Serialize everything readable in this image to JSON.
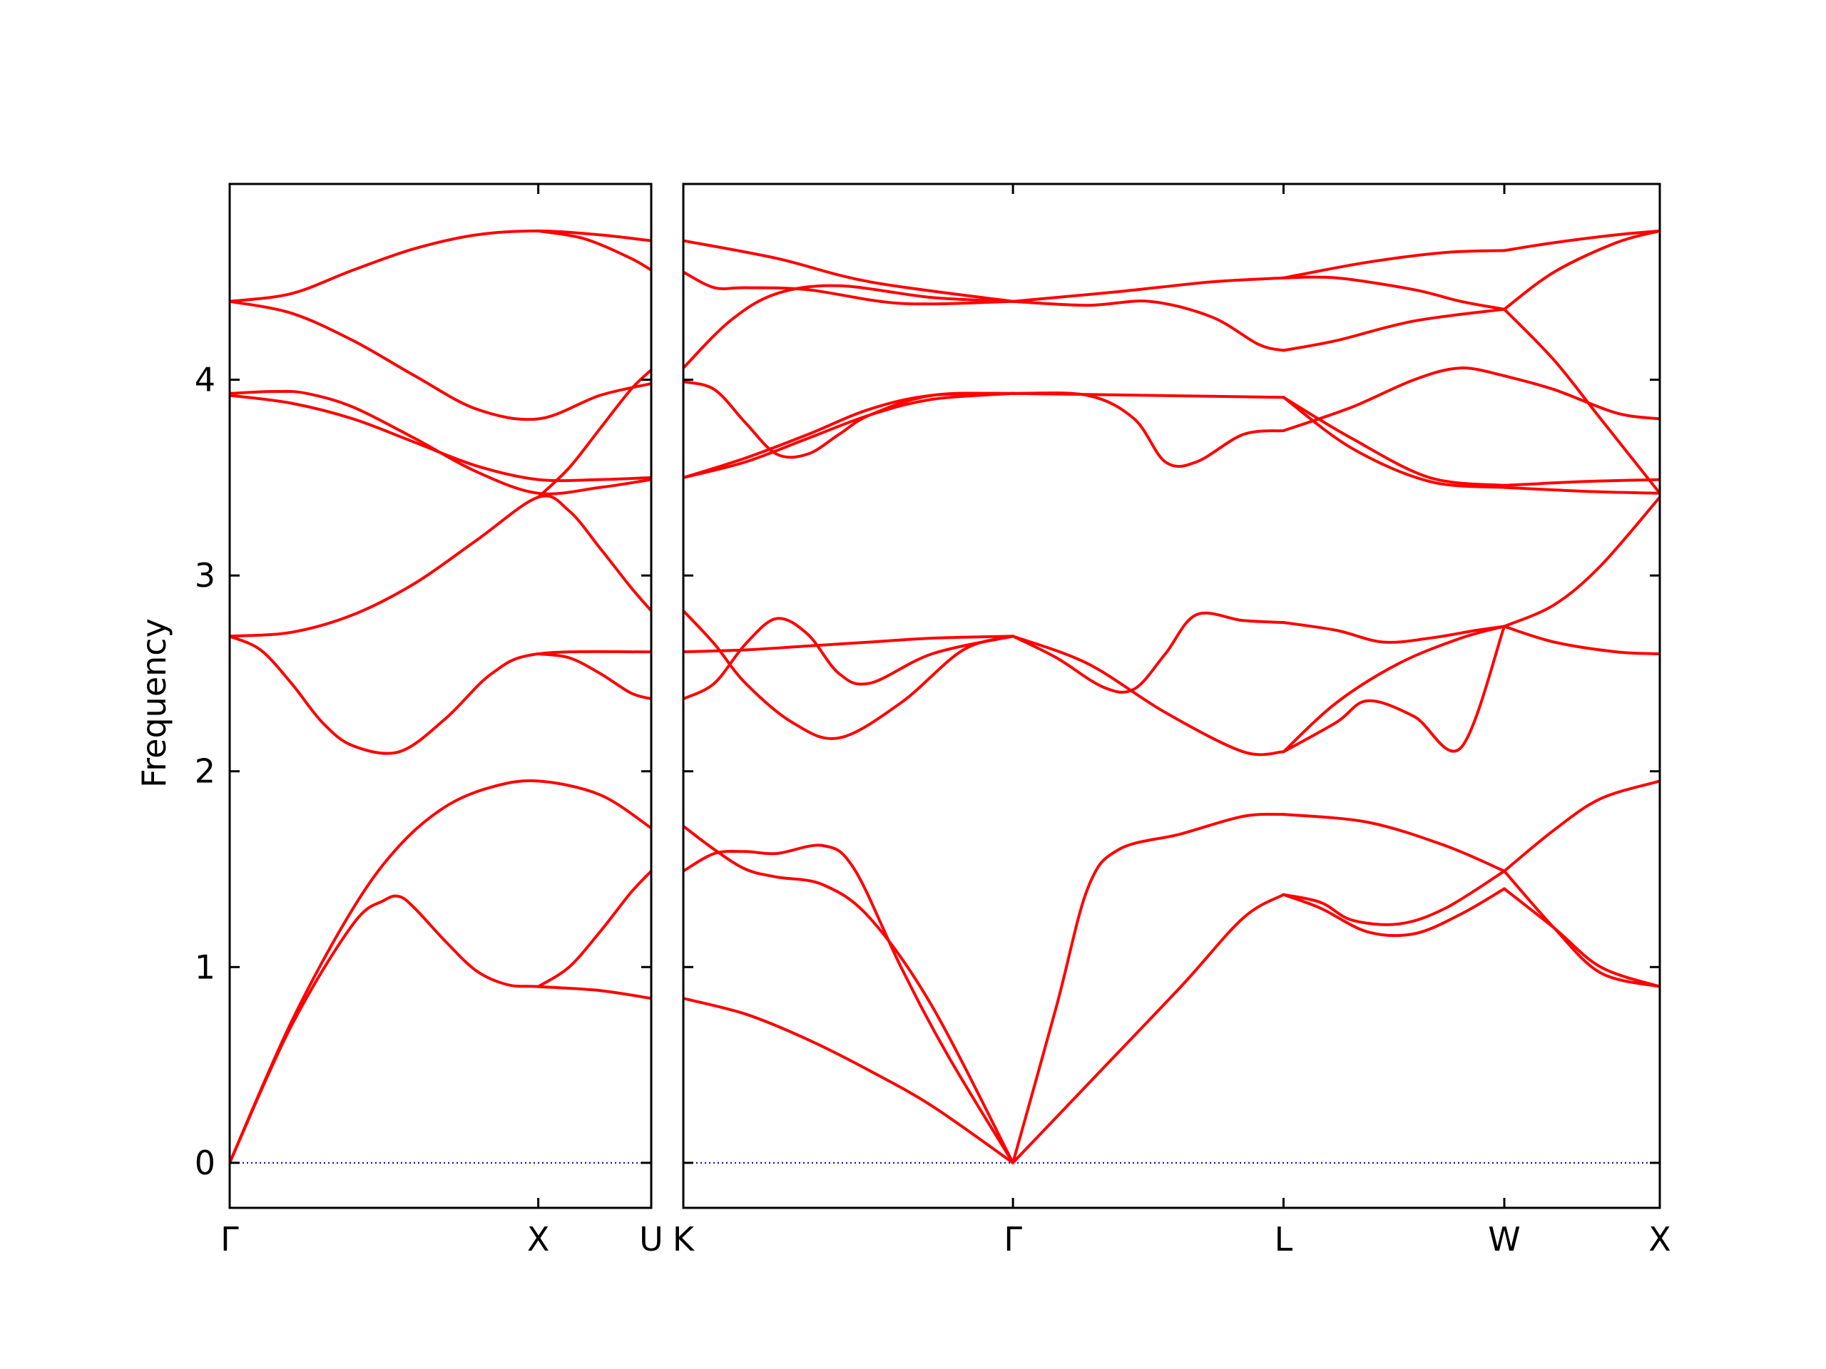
{
  "chart_data": {
    "type": "line",
    "title": "",
    "ylabel": "Frequency",
    "xlabel": "",
    "ylim": [
      -0.23,
      5.0
    ],
    "yticks": [
      0,
      1,
      2,
      3,
      4
    ],
    "yticks_labels": [
      "0",
      "1",
      "2",
      "3",
      "4"
    ],
    "grid": false,
    "legend": "none",
    "colors": {
      "bands": "#ff0000",
      "zero_line": "#0000cc",
      "axes": "#000000"
    },
    "panels": [
      {
        "name": "Γ-X-U",
        "xlim": [
          0,
          1.366
        ],
        "xticks": [
          0,
          1.0,
          1.366
        ],
        "xtick_labels": [
          "Γ",
          "X",
          "U"
        ],
        "bands": [
          {
            "x": [
              0,
              0.2,
              0.4,
              0.55,
              0.7,
              0.85,
              1.0,
              1.2,
              1.366
            ],
            "y": [
              0,
              0.72,
              1.3,
              1.62,
              1.82,
              1.92,
              1.95,
              1.88,
              1.71
            ]
          },
          {
            "x": [
              0,
              0.2,
              0.4,
              0.5,
              0.55,
              0.6,
              0.7,
              0.8,
              0.9,
              1.0,
              1.2,
              1.366
            ],
            "y": [
              0,
              0.7,
              1.22,
              1.34,
              1.36,
              1.3,
              1.13,
              0.98,
              0.91,
              0.9,
              0.88,
              0.84
            ]
          },
          {
            "x": [
              0,
              0.1,
              0.2,
              0.3,
              0.4,
              0.55,
              0.7,
              0.85,
              1.0,
              1.366
            ],
            "y": [
              2.69,
              2.62,
              2.45,
              2.25,
              2.13,
              2.1,
              2.27,
              2.5,
              2.6,
              2.61
            ]
          },
          {
            "x": [
              0,
              0.2,
              0.4,
              0.6,
              0.8,
              1.0,
              1.1,
              1.2,
              1.3,
              1.366
            ],
            "y": [
              2.69,
              2.71,
              2.8,
              2.96,
              3.18,
              3.4,
              3.33,
              3.14,
              2.94,
              2.82
            ]
          },
          {
            "x": [
              1.0,
              1.1,
              1.2,
              1.3,
              1.366
            ],
            "y": [
              2.6,
              2.58,
              2.5,
              2.4,
              2.37
            ]
          },
          {
            "x": [
              1.0,
              1.1,
              1.2,
              1.3,
              1.366
            ],
            "y": [
              0.9,
              1.0,
              1.18,
              1.38,
              1.49
            ]
          },
          {
            "x": [
              0,
              0.15,
              0.25,
              0.4,
              0.6,
              0.8,
              1.0,
              1.2,
              1.366
            ],
            "y": [
              3.93,
              3.94,
              3.93,
              3.86,
              3.7,
              3.53,
              3.42,
              3.45,
              3.49
            ]
          },
          {
            "x": [
              0,
              0.2,
              0.4,
              0.6,
              0.8,
              1.0,
              1.2,
              1.366
            ],
            "y": [
              3.92,
              3.88,
              3.8,
              3.68,
              3.56,
              3.49,
              3.49,
              3.5
            ]
          },
          {
            "x": [
              1.0,
              1.1,
              1.2,
              1.3,
              1.366
            ],
            "y": [
              3.4,
              3.55,
              3.75,
              3.95,
              4.05
            ]
          },
          {
            "x": [
              0,
              0.2,
              0.4,
              0.6,
              0.8,
              1.0,
              1.2,
              1.366
            ],
            "y": [
              4.4,
              4.34,
              4.2,
              4.02,
              3.85,
              3.8,
              3.92,
              3.98
            ]
          },
          {
            "x": [
              0,
              0.2,
              0.4,
              0.6,
              0.8,
              1.0,
              1.2,
              1.366
            ],
            "y": [
              4.4,
              4.44,
              4.56,
              4.67,
              4.74,
              4.76,
              4.74,
              4.71
            ]
          },
          {
            "x": [
              1.0,
              1.15,
              1.3,
              1.366
            ],
            "y": [
              4.76,
              4.72,
              4.62,
              4.56
            ]
          }
        ]
      },
      {
        "name": "K-Γ-L-W-X",
        "xlim": [
          0,
          4.68
        ],
        "xticks": [
          0,
          1.06,
          1.93,
          2.64,
          3.14
        ],
        "xtick_labels": [
          "K",
          "Γ",
          "L",
          "W",
          "X"
        ],
        "xdomain": [
          0,
          3.14
        ],
        "bands": [
          {
            "x": [
              0,
              0.2,
              0.4,
              0.6,
              0.8,
              1.06
            ],
            "y": [
              0.84,
              0.76,
              0.63,
              0.47,
              0.29,
              0
            ]
          },
          {
            "x": [
              0,
              0.1,
              0.2,
              0.3,
              0.45,
              0.6,
              0.8,
              1.06
            ],
            "y": [
              1.72,
              1.6,
              1.5,
              1.46,
              1.42,
              1.25,
              0.8,
              0
            ]
          },
          {
            "x": [
              0,
              0.1,
              0.2,
              0.3,
              0.45,
              0.55,
              0.7,
              0.85,
              1.06
            ],
            "y": [
              1.49,
              1.58,
              1.59,
              1.58,
              1.62,
              1.5,
              1.0,
              0.55,
              0
            ]
          },
          {
            "x": [
              1.06,
              1.2,
              1.3,
              1.4,
              1.6,
              1.8,
              1.93
            ],
            "y": [
              0,
              0.8,
              1.4,
              1.6,
              1.68,
              1.77,
              1.78
            ]
          },
          {
            "x": [
              1.06,
              1.3,
              1.6,
              1.8,
              1.93
            ],
            "y": [
              0,
              0.4,
              0.9,
              1.25,
              1.37
            ]
          },
          {
            "x": [
              1.93,
              2.05,
              2.15,
              2.3,
              2.45,
              2.64
            ],
            "y": [
              1.37,
              1.33,
              1.24,
              1.22,
              1.3,
              1.49
            ]
          },
          {
            "x": [
              1.93,
              2.05,
              2.2,
              2.35,
              2.5,
              2.64
            ],
            "y": [
              1.37,
              1.3,
              1.18,
              1.17,
              1.27,
              1.4
            ]
          },
          {
            "x": [
              1.93,
              2.2,
              2.45,
              2.64
            ],
            "y": [
              1.78,
              1.74,
              1.62,
              1.49
            ]
          },
          {
            "x": [
              2.64,
              2.8,
              2.95,
              3.14
            ],
            "y": [
              1.49,
              1.7,
              1.86,
              1.95
            ]
          },
          {
            "x": [
              2.64,
              2.8,
              2.95,
              3.14
            ],
            "y": [
              1.4,
              1.2,
              1.0,
              0.9
            ]
          },
          {
            "x": [
              2.64,
              2.8,
              2.95,
              3.14
            ],
            "y": [
              1.49,
              1.2,
              0.97,
              0.9
            ]
          },
          {
            "x": [
              0,
              0.2,
              0.4,
              0.6,
              0.8,
              1.06
            ],
            "y": [
              2.61,
              2.62,
              2.64,
              2.66,
              2.68,
              2.69
            ]
          },
          {
            "x": [
              0,
              0.1,
              0.2,
              0.3,
              0.4,
              0.5,
              0.6,
              0.8,
              1.06
            ],
            "y": [
              2.37,
              2.45,
              2.65,
              2.78,
              2.7,
              2.5,
              2.45,
              2.6,
              2.69
            ]
          },
          {
            "x": [
              0,
              0.1,
              0.2,
              0.35,
              0.5,
              0.7,
              0.9,
              1.06
            ],
            "y": [
              2.82,
              2.65,
              2.45,
              2.25,
              2.17,
              2.35,
              2.62,
              2.69
            ]
          },
          {
            "x": [
              1.06,
              1.2,
              1.35,
              1.45,
              1.55,
              1.65,
              1.8,
              1.93
            ],
            "y": [
              2.69,
              2.58,
              2.43,
              2.42,
              2.6,
              2.8,
              2.77,
              2.76
            ]
          },
          {
            "x": [
              1.06,
              1.3,
              1.55,
              1.8,
              1.93
            ],
            "y": [
              2.69,
              2.55,
              2.3,
              2.1,
              2.1
            ]
          },
          {
            "x": [
              1.93,
              2.1,
              2.25,
              2.4,
              2.55,
              2.64
            ],
            "y": [
              2.76,
              2.72,
              2.66,
              2.68,
              2.72,
              2.74
            ]
          },
          {
            "x": [
              1.93,
              2.1,
              2.2,
              2.35,
              2.5,
              2.64
            ],
            "y": [
              2.1,
              2.25,
              2.36,
              2.28,
              2.12,
              2.74
            ]
          },
          {
            "x": [
              1.93,
              2.1,
              2.3,
              2.5,
              2.64
            ],
            "y": [
              2.1,
              2.35,
              2.55,
              2.68,
              2.74
            ]
          },
          {
            "x": [
              2.64,
              2.8,
              3.0,
              3.14
            ],
            "y": [
              2.74,
              2.66,
              2.61,
              2.6
            ]
          },
          {
            "x": [
              2.64,
              2.8,
              2.95,
              3.14
            ],
            "y": [
              2.74,
              2.85,
              3.05,
              3.4
            ]
          },
          {
            "x": [
              0,
              0.2,
              0.4,
              0.6,
              0.8,
              1.06
            ],
            "y": [
              3.5,
              3.6,
              3.72,
              3.85,
              3.92,
              3.93
            ]
          },
          {
            "x": [
              0,
              0.2,
              0.4,
              0.6,
              0.8,
              1.06
            ],
            "y": [
              3.5,
              3.58,
              3.7,
              3.82,
              3.9,
              3.93
            ]
          },
          {
            "x": [
              0,
              0.1,
              0.2,
              0.3,
              0.4,
              0.5,
              0.6,
              0.8,
              1.06
            ],
            "y": [
              3.99,
              3.95,
              3.78,
              3.62,
              3.62,
              3.72,
              3.82,
              3.92,
              3.93
            ]
          },
          {
            "x": [
              1.06,
              1.3,
              1.45,
              1.55,
              1.65,
              1.8,
              1.93
            ],
            "y": [
              3.93,
              3.92,
              3.8,
              3.58,
              3.58,
              3.72,
              3.74
            ]
          },
          {
            "x": [
              1.06,
              1.5,
              1.93
            ],
            "y": [
              3.93,
              3.92,
              3.91
            ]
          },
          {
            "x": [
              1.93,
              2.15,
              2.35,
              2.5,
              2.64
            ],
            "y": [
              3.74,
              3.86,
              4.0,
              4.06,
              4.02
            ]
          },
          {
            "x": [
              1.93,
              2.15,
              2.4,
              2.64
            ],
            "y": [
              3.91,
              3.65,
              3.48,
              3.45
            ]
          },
          {
            "x": [
              1.93,
              2.15,
              2.4,
              2.64
            ],
            "y": [
              3.91,
              3.7,
              3.5,
              3.46
            ]
          },
          {
            "x": [
              2.64,
              2.8,
              3.0,
              3.14
            ],
            "y": [
              4.02,
              3.95,
              3.83,
              3.8
            ]
          },
          {
            "x": [
              2.64,
              2.9,
              3.14
            ],
            "y": [
              3.46,
              3.48,
              3.49
            ]
          },
          {
            "x": [
              2.64,
              2.9,
              3.14
            ],
            "y": [
              3.45,
              3.43,
              3.42
            ]
          },
          {
            "x": [
              0,
              0.15,
              0.3,
              0.5,
              0.8,
              1.06
            ],
            "y": [
              4.06,
              4.3,
              4.44,
              4.48,
              4.42,
              4.4
            ]
          },
          {
            "x": [
              0,
              0.1,
              0.2,
              0.4,
              0.7,
              1.06
            ],
            "y": [
              4.55,
              4.47,
              4.47,
              4.46,
              4.39,
              4.4
            ]
          },
          {
            "x": [
              0,
              0.3,
              0.6,
              1.06
            ],
            "y": [
              4.71,
              4.62,
              4.5,
              4.4
            ]
          },
          {
            "x": [
              1.06,
              1.4,
              1.7,
              1.93
            ],
            "y": [
              4.4,
              4.45,
              4.5,
              4.52
            ]
          },
          {
            "x": [
              1.06,
              1.3,
              1.5,
              1.7,
              1.85,
              1.93
            ],
            "y": [
              4.4,
              4.38,
              4.4,
              4.32,
              4.18,
              4.15
            ]
          },
          {
            "x": [
              1.93,
              2.2,
              2.45,
              2.64
            ],
            "y": [
              4.52,
              4.6,
              4.65,
              4.66
            ]
          },
          {
            "x": [
              1.93,
              2.1,
              2.35,
              2.64
            ],
            "y": [
              4.15,
              4.2,
              4.3,
              4.36
            ]
          },
          {
            "x": [
              1.93,
              2.1,
              2.35,
              2.5,
              2.64
            ],
            "y": [
              4.52,
              4.52,
              4.46,
              4.4,
              4.36
            ]
          },
          {
            "x": [
              2.64,
              2.8,
              3.0,
              3.14
            ],
            "y": [
              4.66,
              4.7,
              4.74,
              4.76
            ]
          },
          {
            "x": [
              2.64,
              2.8,
              3.0,
              3.14
            ],
            "y": [
              4.36,
              4.55,
              4.7,
              4.76
            ]
          },
          {
            "x": [
              2.64,
              2.8,
              2.95,
              3.14
            ],
            "y": [
              4.36,
              4.1,
              3.8,
              3.42
            ]
          }
        ]
      }
    ]
  }
}
